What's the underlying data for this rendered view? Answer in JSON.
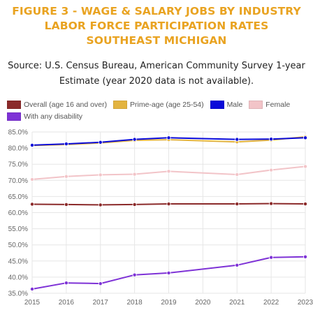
{
  "title_lines": [
    "FIGURE 3 - WAGE & SALARY JOBS BY INDUSTRY",
    "LABOR FORCE PARTICIPATION RATES",
    "SOUTHEAST MICHIGAN"
  ],
  "source_lines": [
    "Source: U.S. Census Bureau, American Community Survey 1-year",
    "Estimate (year 2020 data is not available)."
  ],
  "colors": {
    "title": "#e9a321",
    "overall": "#8b2a2a",
    "prime_age": "#e3b440",
    "male": "#0a0ad9",
    "female": "#f2c4c8",
    "disability": "#7e32d6"
  },
  "chart_data": {
    "type": "line",
    "x": [
      "2015",
      "2016",
      "2017",
      "2018",
      "2019",
      "2020",
      "2021",
      "2022",
      "2023"
    ],
    "ylim": [
      35,
      85
    ],
    "y_ticks": [
      "35.0%",
      "40.0%",
      "45.0%",
      "50.0%",
      "55.0%",
      "60.0%",
      "65.0%",
      "70.0%",
      "75.0%",
      "80.0%",
      "85.0%"
    ],
    "grid": true,
    "legend_position": "top-left",
    "series": [
      {
        "name": "Overall (age 16 and over)",
        "color": "#8b2a2a",
        "values": [
          62.6,
          62.5,
          62.4,
          62.5,
          62.7,
          null,
          62.7,
          62.8,
          62.7
        ]
      },
      {
        "name": "Prime-age (age 25-54)",
        "color": "#e3b440",
        "values": [
          80.8,
          81.1,
          81.6,
          82.4,
          82.6,
          null,
          81.9,
          82.5,
          83.5
        ]
      },
      {
        "name": "Male",
        "color": "#0a0ad9",
        "values": [
          80.9,
          81.3,
          81.8,
          82.7,
          83.2,
          null,
          82.7,
          82.8,
          83.2
        ]
      },
      {
        "name": "Female",
        "color": "#f2c4c8",
        "values": [
          70.3,
          71.2,
          71.7,
          71.9,
          72.8,
          null,
          71.8,
          73.2,
          74.3
        ]
      },
      {
        "name": "With any disability",
        "color": "#7e32d6",
        "values": [
          36.3,
          38.2,
          38.0,
          40.7,
          41.3,
          null,
          43.7,
          46.1,
          46.3
        ]
      }
    ]
  }
}
